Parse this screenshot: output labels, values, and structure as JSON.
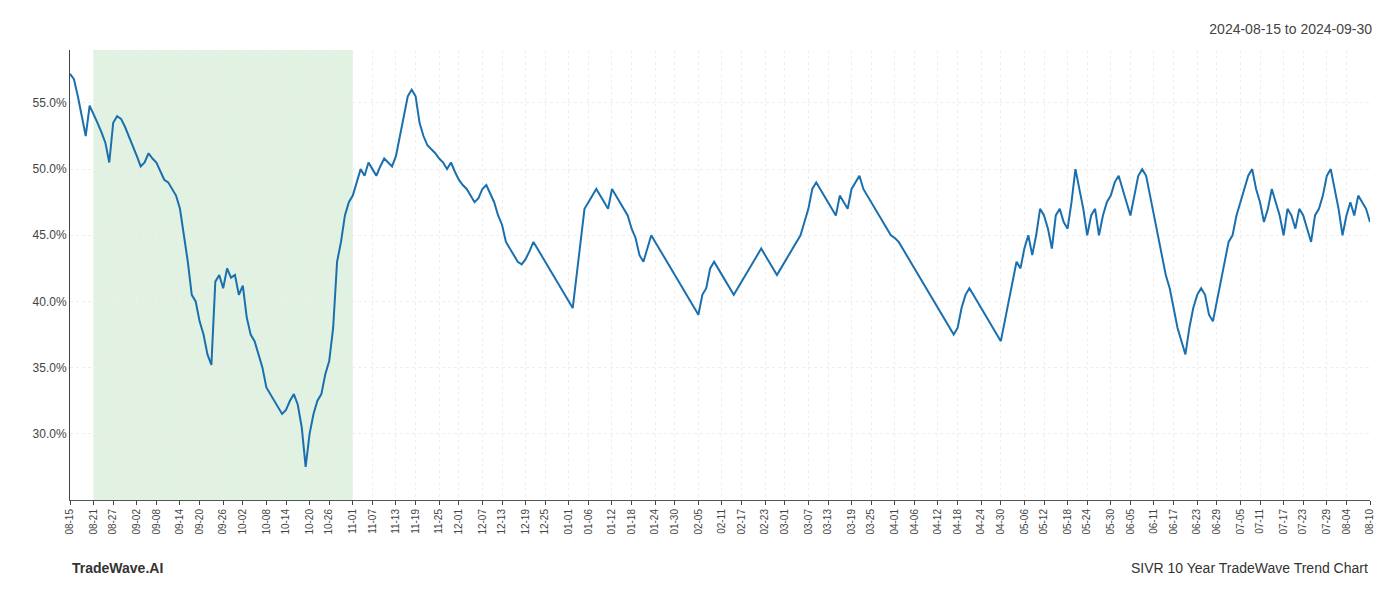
{
  "chart_data": {
    "type": "line",
    "title": "2024-08-15 to 2024-09-30",
    "annotations": [
      "TradeWave.AI",
      "SIVR 10 Year TradeWave Trend Chart"
    ],
    "color": "#1a6faf",
    "grid": true,
    "ylim": [
      25,
      59
    ],
    "yticks": [
      {
        "value": 30,
        "label": "30.0%"
      },
      {
        "value": 35,
        "label": "35.0%"
      },
      {
        "value": 40,
        "label": "40.0%"
      },
      {
        "value": 45,
        "label": "45.0%"
      },
      {
        "value": 50,
        "label": "50.0%"
      },
      {
        "value": 55,
        "label": "55.0%"
      }
    ],
    "highlight": {
      "start": "08-21",
      "end": "11-01",
      "color": "#d6edd6"
    },
    "categories": [
      "08-15",
      null,
      null,
      null,
      null,
      null,
      "08-21",
      null,
      null,
      null,
      null,
      "08-27",
      null,
      null,
      null,
      null,
      null,
      "09-02",
      null,
      null,
      null,
      null,
      "09-08",
      null,
      null,
      null,
      null,
      null,
      "09-14",
      null,
      null,
      null,
      null,
      "09-20",
      null,
      null,
      null,
      null,
      null,
      "09-26",
      null,
      null,
      null,
      null,
      "10-02",
      null,
      null,
      null,
      null,
      null,
      "10-08",
      null,
      null,
      null,
      null,
      "10-14",
      null,
      null,
      null,
      null,
      null,
      "10-20",
      null,
      null,
      null,
      null,
      "10-26",
      null,
      null,
      null,
      null,
      null,
      "11-01",
      null,
      null,
      null,
      null,
      "11-07",
      null,
      null,
      null,
      null,
      null,
      "11-13",
      null,
      null,
      null,
      null,
      "11-19",
      null,
      null,
      null,
      null,
      null,
      "11-25",
      null,
      null,
      null,
      null,
      "12-01",
      null,
      null,
      null,
      null,
      null,
      "12-07",
      null,
      null,
      null,
      null,
      "12-13",
      null,
      null,
      null,
      null,
      null,
      "12-19",
      null,
      null,
      null,
      null,
      "12-25",
      null,
      null,
      null,
      null,
      null,
      "01-01",
      null,
      null,
      null,
      null,
      "01-06",
      null,
      null,
      null,
      null,
      null,
      "01-12",
      null,
      null,
      null,
      null,
      "01-18",
      null,
      null,
      null,
      null,
      null,
      "01-24",
      null,
      null,
      null,
      null,
      "01-30",
      null,
      null,
      null,
      null,
      null,
      "02-05",
      null,
      null,
      null,
      null,
      null,
      "02-11",
      null,
      null,
      null,
      null,
      "02-17",
      null,
      null,
      null,
      null,
      null,
      "02-23",
      null,
      null,
      null,
      null,
      "03-01",
      null,
      null,
      null,
      null,
      null,
      "03-07",
      null,
      null,
      null,
      null,
      "03-13",
      null,
      null,
      null,
      null,
      null,
      "03-19",
      null,
      null,
      null,
      null,
      "03-25",
      null,
      null,
      null,
      null,
      null,
      "04-01",
      null,
      null,
      null,
      null,
      "04-06",
      null,
      null,
      null,
      null,
      null,
      "04-12",
      null,
      null,
      null,
      null,
      "04-18",
      null,
      null,
      null,
      null,
      null,
      "04-24",
      null,
      null,
      null,
      null,
      "04-30",
      null,
      null,
      null,
      null,
      null,
      "05-06",
      null,
      null,
      null,
      null,
      "05-12",
      null,
      null,
      null,
      null,
      null,
      "05-18",
      null,
      null,
      null,
      null,
      "05-24",
      null,
      null,
      null,
      null,
      null,
      "05-30",
      null,
      null,
      null,
      null,
      "06-05",
      null,
      null,
      null,
      null,
      null,
      "06-11",
      null,
      null,
      null,
      null,
      "06-17",
      null,
      null,
      null,
      null,
      null,
      "06-23",
      null,
      null,
      null,
      null,
      "06-29",
      null,
      null,
      null,
      null,
      null,
      "07-05",
      null,
      null,
      null,
      null,
      "07-11",
      null,
      null,
      null,
      null,
      null,
      "07-17",
      null,
      null,
      null,
      null,
      "07-23",
      null,
      null,
      null,
      null,
      null,
      "07-29",
      null,
      null,
      null,
      null,
      "08-04",
      null,
      null,
      null,
      null,
      null,
      "08-10"
    ],
    "values": [
      57.2,
      56.8,
      55.5,
      54.0,
      52.5,
      54.8,
      54.2,
      53.5,
      52.8,
      52.0,
      50.5,
      53.5,
      54.0,
      53.8,
      53.2,
      52.5,
      51.8,
      51.0,
      50.2,
      50.5,
      51.2,
      50.8,
      50.5,
      49.8,
      49.2,
      49.0,
      48.5,
      48.0,
      47.0,
      45.0,
      43.0,
      40.5,
      40.0,
      38.5,
      37.5,
      36.0,
      35.2,
      41.5,
      42.0,
      41.0,
      42.5,
      41.8,
      42.0,
      40.5,
      41.2,
      38.8,
      37.5,
      37.0,
      36.0,
      35.0,
      33.5,
      33.0,
      32.5,
      32.0,
      31.5,
      31.8,
      32.5,
      33.0,
      32.2,
      30.5,
      27.5,
      30.0,
      31.5,
      32.5,
      33.0,
      34.5,
      35.5,
      38.0,
      43.0,
      44.5,
      46.5,
      47.5,
      48.0,
      49.0,
      50.0,
      49.5,
      50.5,
      50.0,
      49.5,
      50.2,
      50.8,
      50.5,
      50.2,
      51.0,
      52.5,
      54.0,
      55.5,
      56.0,
      55.5,
      53.5,
      52.5,
      51.8,
      51.5,
      51.2,
      50.8,
      50.5,
      50.0,
      50.5,
      49.8,
      49.2,
      48.8,
      48.5,
      48.0,
      47.5,
      47.8,
      48.5,
      48.8,
      48.2,
      47.5,
      46.5,
      45.8,
      44.5,
      44.0,
      43.5,
      43.0,
      42.8,
      43.2,
      43.8,
      44.5,
      44.0,
      43.5,
      43.0,
      42.5,
      42.0,
      41.5,
      41.0,
      40.5,
      40.0,
      39.5,
      42.0,
      44.5,
      47.0,
      47.5,
      48.0,
      48.5,
      48.0,
      47.5,
      47.0,
      48.5,
      48.0,
      47.5,
      47.0,
      46.5,
      45.5,
      44.8,
      43.5,
      43.0,
      44.0,
      45.0,
      44.5,
      44.0,
      43.5,
      43.0,
      42.5,
      42.0,
      41.5,
      41.0,
      40.5,
      40.0,
      39.5,
      39.0,
      40.5,
      41.0,
      42.5,
      43.0,
      42.5,
      42.0,
      41.5,
      41.0,
      40.5,
      41.0,
      41.5,
      42.0,
      42.5,
      43.0,
      43.5,
      44.0,
      43.5,
      43.0,
      42.5,
      42.0,
      42.5,
      43.0,
      43.5,
      44.0,
      44.5,
      45.0,
      46.0,
      47.0,
      48.5,
      49.0,
      48.5,
      48.0,
      47.5,
      47.0,
      46.5,
      48.0,
      47.5,
      47.0,
      48.5,
      49.0,
      49.5,
      48.5,
      48.0,
      47.5,
      47.0,
      46.5,
      46.0,
      45.5,
      45.0,
      44.8,
      44.5,
      44.0,
      43.5,
      43.0,
      42.5,
      42.0,
      41.5,
      41.0,
      40.5,
      40.0,
      39.5,
      39.0,
      38.5,
      38.0,
      37.5,
      38.0,
      39.5,
      40.5,
      41.0,
      40.5,
      40.0,
      39.5,
      39.0,
      38.5,
      38.0,
      37.5,
      37.0,
      38.5,
      40.0,
      41.5,
      43.0,
      42.5,
      44.0,
      45.0,
      43.5,
      45.0,
      47.0,
      46.5,
      45.5,
      44.0,
      46.5,
      47.0,
      46.0,
      45.5,
      47.5,
      50.0,
      48.5,
      47.0,
      45.0,
      46.5,
      47.0,
      45.0,
      46.5,
      47.5,
      48.0,
      49.0,
      49.5,
      48.5,
      47.5,
      46.5,
      48.0,
      49.5,
      50.0,
      49.5,
      48.0,
      46.5,
      45.0,
      43.5,
      42.0,
      41.0,
      39.5,
      38.0,
      37.0,
      36.0,
      38.0,
      39.5,
      40.5,
      41.0,
      40.5,
      39.0,
      38.5,
      40.0,
      41.5,
      43.0,
      44.5,
      45.0,
      46.5,
      47.5,
      48.5,
      49.5,
      50.0,
      48.5,
      47.5,
      46.0,
      47.0,
      48.5,
      47.5,
      46.5,
      45.0,
      47.0,
      46.5,
      45.5,
      47.0,
      46.5,
      45.5,
      44.5,
      46.5,
      47.0,
      48.0,
      49.5,
      50.0,
      48.5,
      47.0,
      45.0,
      46.5,
      47.5,
      46.5,
      48.0,
      47.5,
      47.0,
      46.0
    ]
  }
}
